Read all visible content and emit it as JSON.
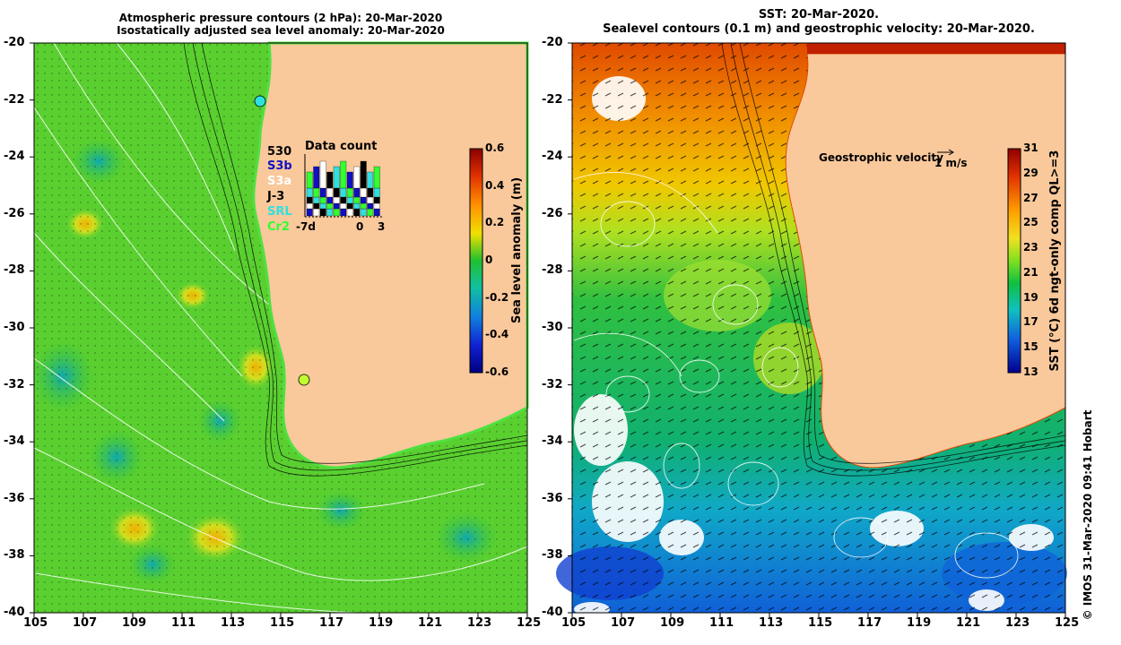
{
  "left_panel": {
    "title_line1": "Atmospheric pressure contours (2 hPa): 20-Mar-2020",
    "title_line2": "Isostatically adjusted sea level anomaly: 20-Mar-2020",
    "colorbar": {
      "label": "Sea level anomaly (m)",
      "ticks": [
        "0.6",
        "0.4",
        "0.2",
        "0",
        "-0.2",
        "-0.4",
        "-0.6"
      ]
    },
    "inset": {
      "title": "Data count",
      "max_label": "530",
      "legend": [
        {
          "name": "S3b",
          "color": "#1010c0"
        },
        {
          "name": "S3a",
          "color": "#ffffff"
        },
        {
          "name": "J-3",
          "color": "#000000"
        },
        {
          "name": "SRL",
          "color": "#30e0e0"
        },
        {
          "name": "Cr2",
          "color": "#30ff30"
        }
      ],
      "x_ticks": [
        "-7d",
        "0",
        "3"
      ]
    }
  },
  "right_panel": {
    "title_line1": "SST: 20-Mar-2020.",
    "title_line2": "Sealevel contours (0.1 m) and geostrophic velocity: 20-Mar-2020.",
    "velocity_label": "Geostrophic velocity",
    "velocity_scale": "1 m/s",
    "colorbar": {
      "label": "SST (°C) 6d ngt-only comp QL>=3",
      "ticks": [
        "31",
        "29",
        "27",
        "25",
        "23",
        "21",
        "19",
        "17",
        "15",
        "13"
      ]
    }
  },
  "y_ticks": [
    "-20",
    "-22",
    "-24",
    "-26",
    "-28",
    "-30",
    "-32",
    "-34",
    "-36",
    "-38",
    "-40"
  ],
  "x_ticks": [
    "105",
    "107",
    "109",
    "111",
    "113",
    "115",
    "117",
    "119",
    "121",
    "123",
    "125"
  ],
  "credit": "© IMOS 31-Mar-2020 09:41 Hobart"
}
